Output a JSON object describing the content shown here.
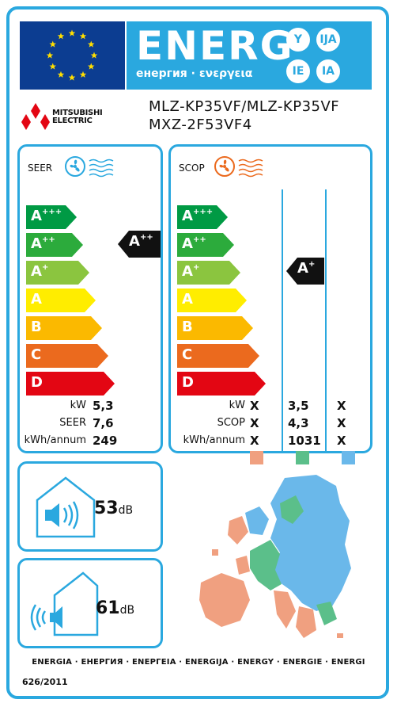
{
  "header": {
    "energy_word": "ENERG",
    "energy_subtitle": "енергия · ενεργεια",
    "suffixes": [
      "Y",
      "IJA",
      "IE",
      "IA"
    ]
  },
  "brand": {
    "name_line1": "MITSUBISHI",
    "name_line2": "ELECTRIC",
    "logo_icon": "three-diamonds-icon"
  },
  "model": {
    "line1": "MLZ-KP35VF/MLZ-KP35VF",
    "line2": "MXZ-2F53VF4"
  },
  "colors": {
    "app_blue": "#2aa8df",
    "flag_blue": "#0c3d91",
    "star_yellow": "#ffde00",
    "class_colors": [
      "#009a44",
      "#2cab3c",
      "#8bc53f",
      "#ffed00",
      "#fbb900",
      "#eb6a1e",
      "#e30613"
    ],
    "zone_warmer": "#f0a080",
    "zone_average": "#5bbf8a",
    "zone_colder": "#6ab8ea"
  },
  "classes": [
    {
      "letter": "A",
      "sup": "+++"
    },
    {
      "letter": "A",
      "sup": "++"
    },
    {
      "letter": "A",
      "sup": "+"
    },
    {
      "letter": "A",
      "sup": ""
    },
    {
      "letter": "B",
      "sup": ""
    },
    {
      "letter": "C",
      "sup": ""
    },
    {
      "letter": "D",
      "sup": ""
    }
  ],
  "cooling": {
    "title": "SEER",
    "icon": "fan-cooling-icon",
    "rating": {
      "letter": "A",
      "sup": "++"
    },
    "rows": [
      {
        "label": "kW",
        "value": "5,3"
      },
      {
        "label": "SEER",
        "value": "7,6"
      },
      {
        "label": "kWh/annum",
        "value": "249"
      }
    ]
  },
  "heating": {
    "title": "SCOP",
    "icon": "fan-heating-icon",
    "rating": {
      "letter": "A",
      "sup": "+"
    },
    "rows": [
      {
        "label": "kW",
        "values": [
          "X",
          "3,5",
          "X"
        ]
      },
      {
        "label": "SCOP",
        "values": [
          "X",
          "4,3",
          "X"
        ]
      },
      {
        "label": "kWh/annum",
        "values": [
          "X",
          "1031",
          "X"
        ]
      }
    ],
    "map_icon": "europe-climate-map"
  },
  "noise_indoor": {
    "value": "53",
    "unit": "dB",
    "icon": "indoor-noise-speaker-icon"
  },
  "noise_outdoor": {
    "value": "61",
    "unit": "dB",
    "icon": "outdoor-noise-speaker-icon"
  },
  "footer": {
    "energy_words": "ENERGIA · ЕНЕРГИЯ · ΕΝΕΡΓΕΙΑ · ENERGIJA · ENERGY · ENERGIE · ENERGI",
    "regulation": "626/2011"
  }
}
